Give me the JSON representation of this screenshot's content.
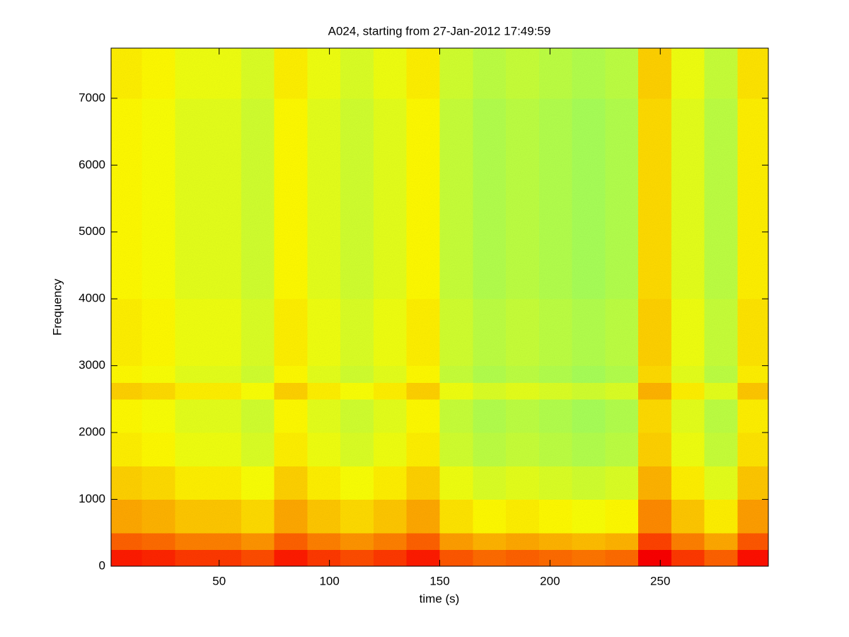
{
  "chart_data": {
    "type": "heatmap",
    "title": "A024, starting from 27-Jan-2012 17:49:59",
    "xlabel": "time (s)",
    "ylabel": "Frequency",
    "colormap": "jet",
    "clim": [
      0,
      1
    ],
    "xlim": [
      1,
      299
    ],
    "ylim": [
      0,
      7750
    ],
    "xticks": [
      50,
      100,
      150,
      200,
      250
    ],
    "yticks": [
      0,
      1000,
      2000,
      3000,
      4000,
      5000,
      6000,
      7000
    ],
    "x_edges": [
      1,
      15,
      30,
      45,
      60,
      75,
      90,
      105,
      120,
      135,
      150,
      165,
      180,
      195,
      210,
      225,
      240,
      255,
      270,
      285,
      299
    ],
    "y_edges": [
      0,
      250,
      500,
      1000,
      1500,
      2000,
      2500,
      2750,
      3000,
      4000,
      5000,
      6000,
      7000,
      7750
    ],
    "z": [
      [
        0.85,
        0.84,
        0.82,
        0.82,
        0.8,
        0.85,
        0.82,
        0.8,
        0.82,
        0.85,
        0.79,
        0.77,
        0.78,
        0.77,
        0.76,
        0.77,
        0.88,
        0.82,
        0.78,
        0.86
      ],
      [
        0.78,
        0.77,
        0.75,
        0.75,
        0.73,
        0.78,
        0.75,
        0.73,
        0.75,
        0.78,
        0.72,
        0.7,
        0.71,
        0.7,
        0.69,
        0.7,
        0.81,
        0.75,
        0.71,
        0.79
      ],
      [
        0.71,
        0.7,
        0.68,
        0.68,
        0.66,
        0.71,
        0.68,
        0.66,
        0.68,
        0.71,
        0.65,
        0.63,
        0.64,
        0.63,
        0.62,
        0.63,
        0.74,
        0.68,
        0.64,
        0.72
      ],
      [
        0.67,
        0.66,
        0.64,
        0.64,
        0.62,
        0.67,
        0.64,
        0.62,
        0.64,
        0.67,
        0.61,
        0.59,
        0.6,
        0.59,
        0.58,
        0.59,
        0.7,
        0.64,
        0.6,
        0.68
      ],
      [
        0.64,
        0.63,
        0.61,
        0.61,
        0.59,
        0.64,
        0.61,
        0.59,
        0.61,
        0.64,
        0.58,
        0.56,
        0.57,
        0.56,
        0.55,
        0.56,
        0.67,
        0.61,
        0.57,
        0.65
      ],
      [
        0.63,
        0.62,
        0.6,
        0.6,
        0.58,
        0.63,
        0.6,
        0.58,
        0.6,
        0.63,
        0.57,
        0.55,
        0.56,
        0.55,
        0.54,
        0.55,
        0.66,
        0.6,
        0.56,
        0.64
      ],
      [
        0.67,
        0.66,
        0.64,
        0.64,
        0.62,
        0.67,
        0.64,
        0.62,
        0.64,
        0.67,
        0.61,
        0.59,
        0.6,
        0.59,
        0.58,
        0.59,
        0.7,
        0.64,
        0.6,
        0.68
      ],
      [
        0.63,
        0.62,
        0.6,
        0.6,
        0.58,
        0.63,
        0.6,
        0.58,
        0.6,
        0.63,
        0.57,
        0.55,
        0.56,
        0.55,
        0.54,
        0.55,
        0.66,
        0.6,
        0.56,
        0.64
      ],
      [
        0.64,
        0.63,
        0.61,
        0.61,
        0.59,
        0.64,
        0.61,
        0.59,
        0.61,
        0.64,
        0.58,
        0.56,
        0.57,
        0.56,
        0.55,
        0.56,
        0.67,
        0.61,
        0.57,
        0.65
      ],
      [
        0.63,
        0.62,
        0.6,
        0.6,
        0.58,
        0.63,
        0.6,
        0.58,
        0.6,
        0.63,
        0.57,
        0.55,
        0.56,
        0.55,
        0.54,
        0.55,
        0.66,
        0.6,
        0.56,
        0.64
      ],
      [
        0.63,
        0.62,
        0.6,
        0.6,
        0.58,
        0.63,
        0.6,
        0.58,
        0.6,
        0.63,
        0.57,
        0.55,
        0.56,
        0.55,
        0.54,
        0.55,
        0.66,
        0.6,
        0.56,
        0.64
      ],
      [
        0.63,
        0.62,
        0.6,
        0.6,
        0.58,
        0.63,
        0.6,
        0.58,
        0.6,
        0.63,
        0.57,
        0.55,
        0.56,
        0.55,
        0.54,
        0.55,
        0.66,
        0.6,
        0.56,
        0.64
      ],
      [
        0.64,
        0.63,
        0.61,
        0.61,
        0.59,
        0.64,
        0.61,
        0.59,
        0.61,
        0.64,
        0.58,
        0.56,
        0.57,
        0.56,
        0.55,
        0.56,
        0.67,
        0.61,
        0.57,
        0.65
      ]
    ]
  }
}
